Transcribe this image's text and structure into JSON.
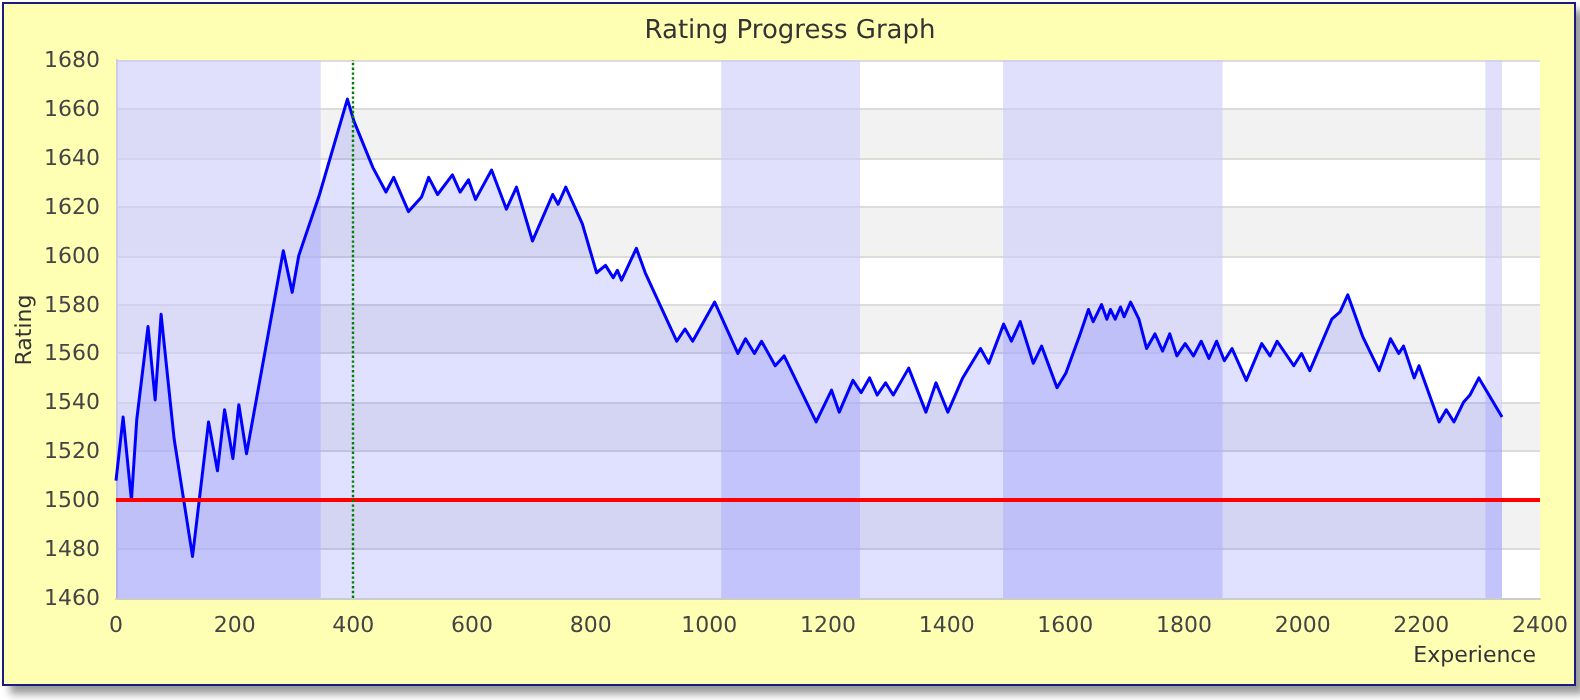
{
  "chart_data": {
    "type": "area",
    "title": "Rating Progress Graph",
    "xlabel": "Experience",
    "ylabel": "Rating",
    "x": [
      0,
      12,
      26,
      35,
      54,
      66,
      76,
      98,
      129,
      156,
      171,
      183,
      197,
      207,
      220,
      282,
      297,
      308,
      343,
      390,
      401,
      433,
      455,
      468,
      493,
      515,
      527,
      542,
      567,
      580,
      594,
      606,
      633,
      658,
      675,
      702,
      736,
      745,
      758,
      786,
      810,
      825,
      838,
      845,
      852,
      877,
      892,
      945,
      959,
      972,
      1009,
      1048,
      1061,
      1076,
      1088,
      1111,
      1126,
      1180,
      1206,
      1219,
      1242,
      1256,
      1270,
      1283,
      1297,
      1310,
      1336,
      1365,
      1382,
      1402,
      1427,
      1457,
      1471,
      1496,
      1509,
      1524,
      1546,
      1560,
      1586,
      1601,
      1625,
      1639,
      1647,
      1661,
      1670,
      1676,
      1684,
      1693,
      1699,
      1710,
      1724,
      1737,
      1751,
      1764,
      1776,
      1788,
      1802,
      1816,
      1829,
      1842,
      1855,
      1868,
      1881,
      1905,
      1931,
      1945,
      1957,
      1985,
      1998,
      2012,
      2049,
      2063,
      2076,
      2101,
      2129,
      2148,
      2162,
      2170,
      2188,
      2196,
      2230,
      2242,
      2255,
      2271,
      2282,
      2297,
      2336
    ],
    "series": [
      {
        "color": "#0000ff",
        "values": [
          1508,
          1534,
          1500,
          1533,
          1571,
          1541,
          1576,
          1525,
          1477,
          1532,
          1512,
          1537,
          1517,
          1539,
          1519,
          1602,
          1585,
          1600,
          1625,
          1664,
          1655,
          1636,
          1626,
          1632,
          1618,
          1624,
          1632,
          1625,
          1633,
          1626,
          1631,
          1623,
          1635,
          1619,
          1628,
          1606,
          1625,
          1621,
          1628,
          1613,
          1593,
          1596,
          1591,
          1594,
          1590,
          1603,
          1593,
          1565,
          1570,
          1565,
          1581,
          1560,
          1566,
          1560,
          1565,
          1555,
          1559,
          1532,
          1545,
          1536,
          1549,
          1544,
          1550,
          1543,
          1548,
          1543,
          1554,
          1536,
          1548,
          1536,
          1550,
          1562,
          1556,
          1572,
          1565,
          1573,
          1556,
          1563,
          1546,
          1552,
          1568,
          1578,
          1573,
          1580,
          1574,
          1578,
          1574,
          1579,
          1575,
          1581,
          1574,
          1562,
          1568,
          1561,
          1568,
          1559,
          1564,
          1559,
          1565,
          1558,
          1565,
          1557,
          1562,
          1549,
          1564,
          1559,
          1565,
          1555,
          1560,
          1553,
          1574,
          1577,
          1584,
          1567,
          1553,
          1566,
          1560,
          1563,
          1550,
          1555,
          1532,
          1537,
          1532,
          1540,
          1543,
          1550,
          1534
        ]
      }
    ],
    "xlim": [
      0,
      2400
    ],
    "xticks": [
      0,
      200,
      400,
      600,
      800,
      1000,
      1200,
      1400,
      1600,
      1800,
      2000,
      2200,
      2400
    ],
    "ylim": [
      1460,
      1680
    ],
    "yticks": [
      1460,
      1480,
      1500,
      1520,
      1540,
      1560,
      1580,
      1600,
      1620,
      1640,
      1660,
      1680
    ],
    "grid": "y",
    "ref_lines": [
      {
        "axis": "y",
        "value": 1500,
        "color": "#ff0000",
        "line_style": "solid"
      },
      {
        "axis": "x",
        "value": 400,
        "color": "#008000",
        "line_style": "dotted"
      }
    ],
    "bands": [
      {
        "axis": "x",
        "from": 0,
        "to": 345,
        "color": "#ccccfa"
      },
      {
        "axis": "x",
        "from": 1020,
        "to": 1254,
        "color": "#ccccfa"
      },
      {
        "axis": "x",
        "from": 1495,
        "to": 1865,
        "color": "#ccccfa"
      },
      {
        "axis": "x",
        "from": 2308,
        "to": 2336,
        "color": "#ccccfa"
      }
    ]
  }
}
